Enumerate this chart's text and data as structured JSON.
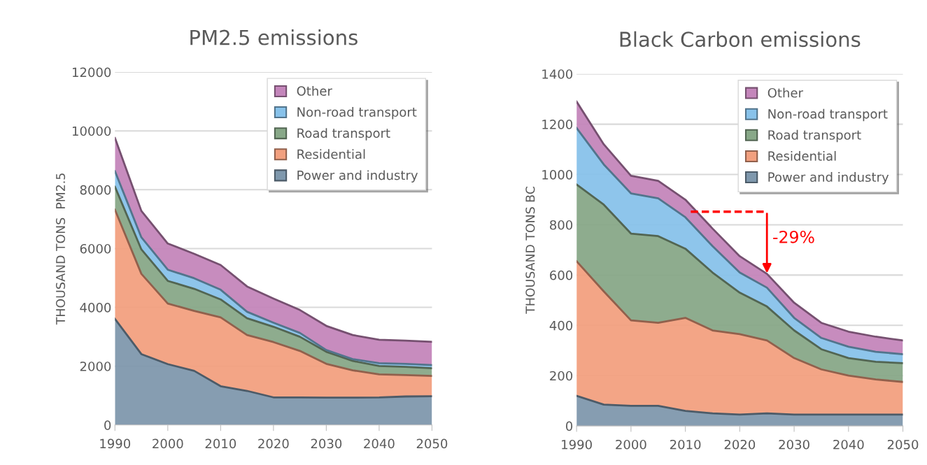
{
  "chart_data": [
    {
      "type": "area",
      "stacked": true,
      "title": "PM2.5 emissions",
      "ylabel": "THOUSAND TONS  PM2.5",
      "x": [
        1990,
        1995,
        2000,
        2005,
        2010,
        2015,
        2020,
        2025,
        2030,
        2035,
        2040,
        2045,
        2050
      ],
      "series": [
        {
          "name": "Power and industry",
          "color": "#7f98ad",
          "values": [
            3610,
            2410,
            2070,
            1840,
            1320,
            1160,
            940,
            940,
            930,
            930,
            940,
            970,
            980
          ]
        },
        {
          "name": "Residential",
          "color": "#f2a07f",
          "values": [
            3710,
            2730,
            2060,
            2040,
            2340,
            1900,
            1880,
            1580,
            1150,
            930,
            780,
            730,
            690
          ]
        },
        {
          "name": "Road transport",
          "color": "#88a888",
          "values": [
            780,
            830,
            770,
            750,
            610,
            570,
            520,
            480,
            410,
            320,
            290,
            280,
            260
          ]
        },
        {
          "name": "Non-road transport",
          "color": "#88c2ea",
          "values": [
            530,
            410,
            380,
            360,
            330,
            220,
            140,
            130,
            60,
            60,
            90,
            100,
            110
          ]
        },
        {
          "name": "Other",
          "color": "#c486bb",
          "values": [
            1130,
            900,
            890,
            830,
            840,
            860,
            820,
            780,
            820,
            820,
            800,
            790,
            790
          ]
        }
      ],
      "xlim": [
        1990,
        2050
      ],
      "xticks": [
        1990,
        2000,
        2010,
        2020,
        2030,
        2040,
        2050
      ],
      "ylim": [
        0,
        12000
      ],
      "yticks": [
        0,
        2000,
        4000,
        6000,
        8000,
        10000,
        12000
      ],
      "grid": "y",
      "legend": "top right"
    },
    {
      "type": "area",
      "stacked": true,
      "title": "Black Carbon emissions",
      "ylabel": "THOUSAND TONS BC",
      "x": [
        1990,
        1995,
        2000,
        2005,
        2010,
        2015,
        2020,
        2025,
        2030,
        2035,
        2040,
        2045,
        2050
      ],
      "series": [
        {
          "name": "Power and industry",
          "color": "#7f98ad",
          "values": [
            120,
            85,
            80,
            80,
            60,
            50,
            45,
            50,
            45,
            45,
            45,
            45,
            45
          ]
        },
        {
          "name": "Residential",
          "color": "#f2a07f",
          "values": [
            535,
            450,
            340,
            330,
            370,
            330,
            320,
            290,
            225,
            180,
            155,
            140,
            130
          ]
        },
        {
          "name": "Road transport",
          "color": "#88a888",
          "values": [
            305,
            345,
            345,
            345,
            275,
            230,
            165,
            135,
            110,
            80,
            70,
            70,
            75
          ]
        },
        {
          "name": "Non-road transport",
          "color": "#88c2ea",
          "values": [
            225,
            160,
            160,
            150,
            125,
            105,
            80,
            75,
            50,
            45,
            45,
            40,
            35
          ]
        },
        {
          "name": "Other",
          "color": "#c486bb",
          "values": [
            105,
            80,
            70,
            70,
            70,
            70,
            65,
            55,
            60,
            60,
            60,
            60,
            55
          ]
        }
      ],
      "xlim": [
        1990,
        2050
      ],
      "xticks": [
        1990,
        2000,
        2010,
        2020,
        2030,
        2040,
        2050
      ],
      "ylim": [
        0,
        1400
      ],
      "yticks": [
        0,
        200,
        400,
        600,
        800,
        1000,
        1200,
        1400
      ],
      "grid": "y",
      "legend": "top right",
      "annotations": [
        {
          "text": "-29%",
          "x": 2025,
          "y": 600
        }
      ]
    }
  ]
}
